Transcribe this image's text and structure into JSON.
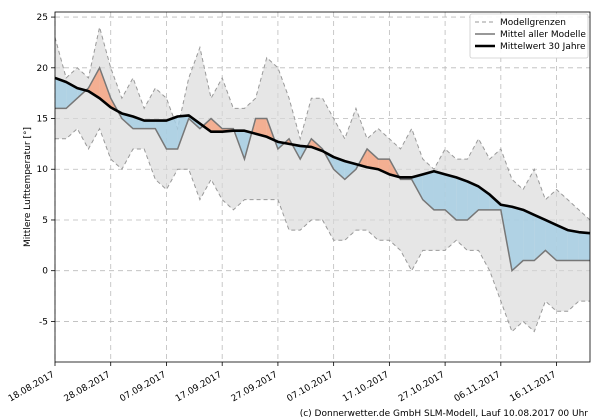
{
  "chart_data": {
    "type": "line",
    "ylabel": "Mittlere Lufttemperatur [°]",
    "xlabel": "",
    "ylim": [
      -9,
      25.5
    ],
    "xlim": [
      "18.08.2017",
      "22.11.2017"
    ],
    "yticks": [
      -5,
      0,
      5,
      10,
      15,
      20,
      25
    ],
    "xticks": [
      "18.08.2017",
      "28.08.2017",
      "07.09.2017",
      "17.09.2017",
      "27.09.2017",
      "07.10.2017",
      "17.10.2017",
      "27.10.2017",
      "06.11.2017",
      "16.11.2017"
    ],
    "grid": true,
    "legend_position": "top-right",
    "fill_colors": {
      "above": "#f4a582",
      "below": "#a6cee3",
      "range": "#d9d9d9"
    },
    "x": [
      "18.08.2017",
      "20.08.2017",
      "22.08.2017",
      "24.08.2017",
      "26.08.2017",
      "28.08.2017",
      "30.08.2017",
      "01.09.2017",
      "03.09.2017",
      "05.09.2017",
      "07.09.2017",
      "09.09.2017",
      "11.09.2017",
      "13.09.2017",
      "15.09.2017",
      "17.09.2017",
      "19.09.2017",
      "21.09.2017",
      "23.09.2017",
      "25.09.2017",
      "27.09.2017",
      "29.09.2017",
      "01.10.2017",
      "03.10.2017",
      "05.10.2017",
      "07.10.2017",
      "09.10.2017",
      "11.10.2017",
      "13.10.2017",
      "15.10.2017",
      "17.10.2017",
      "19.10.2017",
      "21.10.2017",
      "23.10.2017",
      "25.10.2017",
      "27.10.2017",
      "29.10.2017",
      "31.10.2017",
      "02.11.2017",
      "04.11.2017",
      "06.11.2017",
      "08.11.2017",
      "10.11.2017",
      "12.11.2017",
      "14.11.2017",
      "16.11.2017",
      "18.11.2017",
      "20.11.2017",
      "22.11.2017"
    ],
    "series": [
      {
        "name": "Modellgrenzen",
        "style": "dashed-band",
        "upper": [
          23,
          19,
          20,
          19,
          24,
          20,
          17,
          19,
          16,
          18,
          17,
          14,
          19,
          22,
          17,
          19,
          16,
          16,
          17,
          21,
          20,
          17,
          13,
          17,
          17,
          15,
          13,
          16,
          13,
          14,
          13,
          12,
          14,
          11,
          10,
          12,
          11,
          11,
          13,
          11,
          12,
          9,
          8,
          10,
          7,
          8,
          7,
          6,
          5
        ],
        "lower": [
          13,
          13,
          14,
          12,
          14,
          11,
          10,
          12,
          12,
          9,
          8,
          10,
          10,
          7,
          9,
          7,
          6,
          7,
          7,
          7,
          7,
          4,
          4,
          5,
          5,
          3,
          3,
          4,
          4,
          3,
          3,
          2,
          0,
          2,
          2,
          2,
          3,
          2,
          2,
          0,
          -3,
          -6,
          -5,
          -6,
          -3,
          -4,
          -4,
          -3,
          -3
        ]
      },
      {
        "name": "Mittel aller Modelle",
        "values": [
          16,
          16,
          17,
          18,
          20,
          17,
          15,
          14,
          14,
          14,
          12,
          12,
          15,
          14,
          15,
          14,
          14,
          11,
          15,
          15,
          12,
          13,
          11,
          13,
          12,
          10,
          9,
          10,
          12,
          11,
          11,
          9,
          9,
          7,
          6,
          6,
          5,
          5,
          6,
          6,
          6,
          0,
          1,
          1,
          2,
          1,
          1,
          1,
          1
        ]
      },
      {
        "name": "Mittelwert 30 Jahre",
        "values": [
          19.0,
          18.6,
          18.0,
          17.7,
          17.0,
          16.1,
          15.5,
          15.2,
          14.8,
          14.8,
          14.8,
          15.2,
          15.3,
          14.5,
          13.7,
          13.7,
          13.8,
          13.8,
          13.5,
          13.2,
          12.7,
          12.5,
          12.3,
          12.2,
          11.8,
          11.2,
          10.8,
          10.5,
          10.2,
          10.0,
          9.5,
          9.2,
          9.2,
          9.5,
          9.8,
          9.5,
          9.2,
          8.8,
          8.3,
          7.5,
          6.5,
          6.3,
          6.0,
          5.5,
          5.0,
          4.5,
          4.0,
          3.8,
          3.7
        ]
      }
    ]
  },
  "legend": {
    "items": [
      {
        "label": "Modellgrenzen"
      },
      {
        "label": "Mittel aller Modelle"
      },
      {
        "label": "Mittelwert 30 Jahre"
      }
    ]
  },
  "credit": "(c) Donnerwetter.de GmbH SLM-Modell, Lauf 10.08.2017 00 Uhr"
}
